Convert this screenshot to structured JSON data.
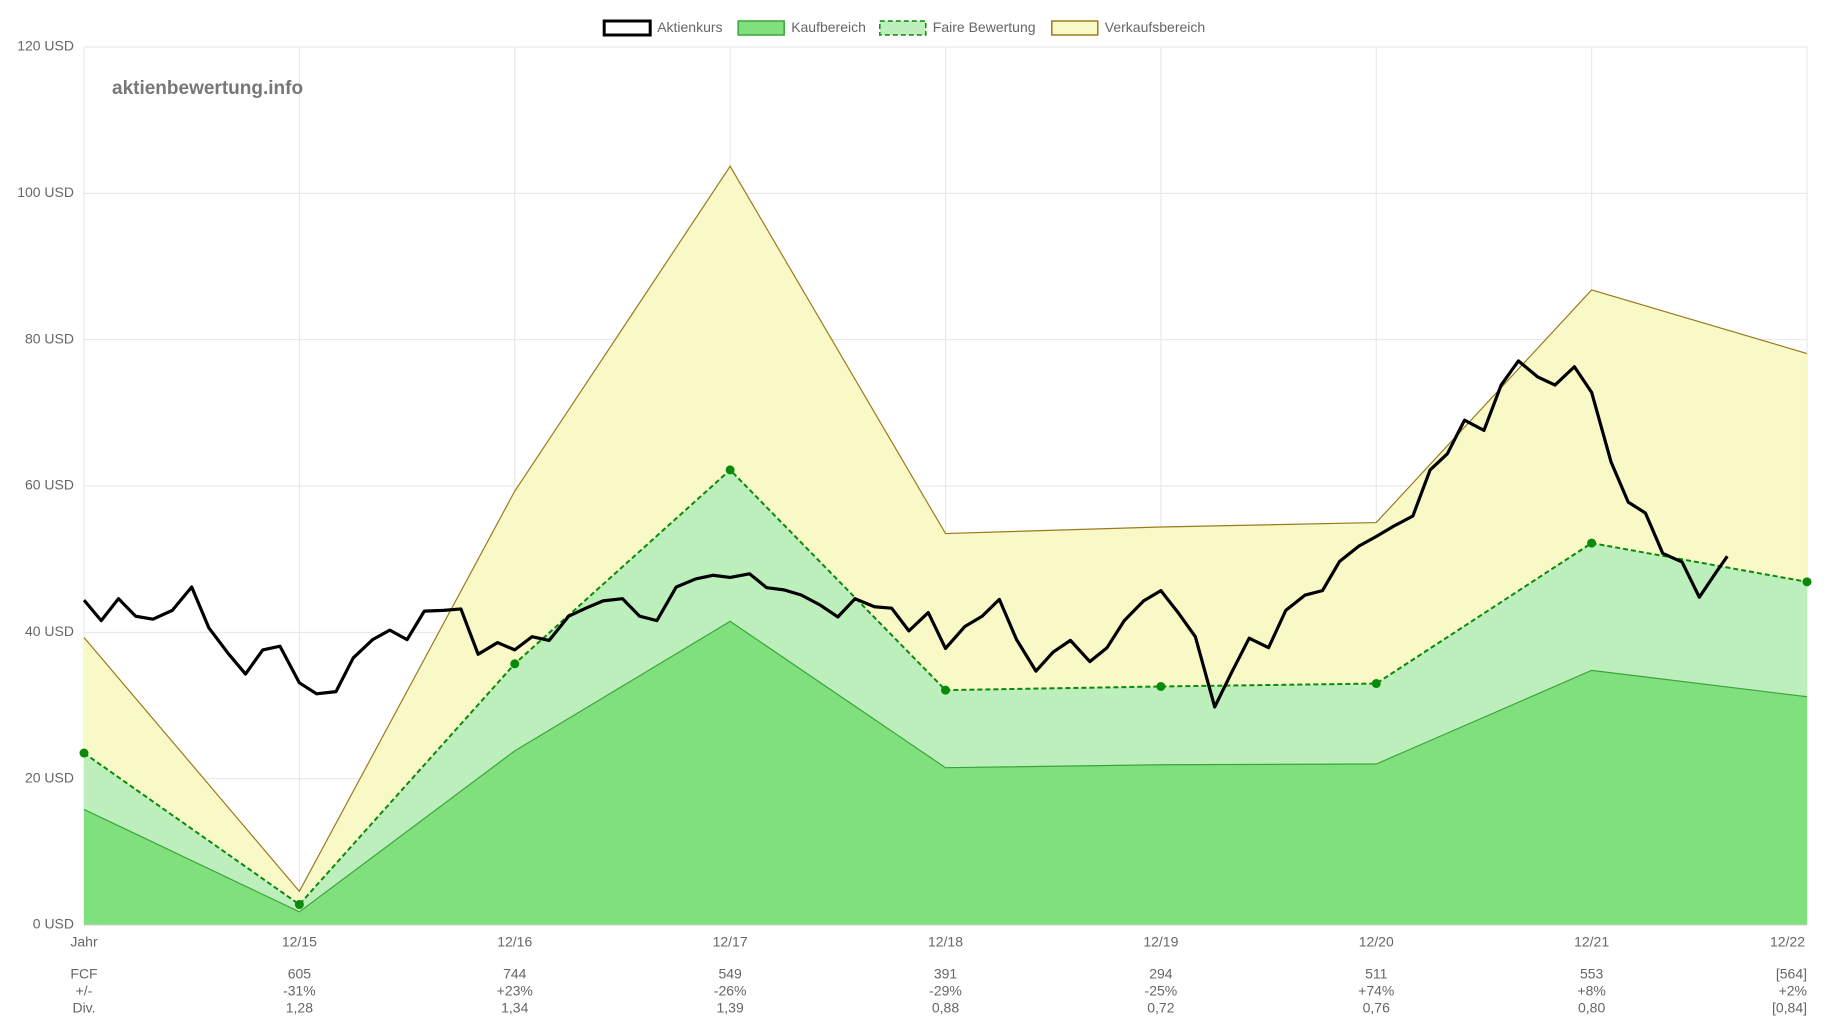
{
  "chart_data": {
    "type": "line",
    "watermark": "aktienbewertung.info",
    "x": [
      0,
      1,
      2,
      3,
      4,
      5,
      6,
      7,
      8
    ],
    "xlim": [
      0,
      8
    ],
    "xticks": [
      {
        "value": 0,
        "label": "Jahr"
      },
      {
        "value": 1,
        "label": "12/15"
      },
      {
        "value": 2,
        "label": "12/16"
      },
      {
        "value": 3,
        "label": "12/17"
      },
      {
        "value": 4,
        "label": "12/18"
      },
      {
        "value": 5,
        "label": "12/19"
      },
      {
        "value": 6,
        "label": "12/20"
      },
      {
        "value": 7,
        "label": "12/21"
      },
      {
        "value": 8,
        "label": "12/22"
      }
    ],
    "ylim": [
      0,
      120
    ],
    "yticks": [
      {
        "value": 0,
        "label": "0 USD"
      },
      {
        "value": 20,
        "label": "20 USD"
      },
      {
        "value": 40,
        "label": "40 USD"
      },
      {
        "value": 60,
        "label": "60 USD"
      },
      {
        "value": 80,
        "label": "80 USD"
      },
      {
        "value": 100,
        "label": "100 USD"
      },
      {
        "value": 120,
        "label": "120 USD"
      }
    ],
    "grid": true,
    "legend": "top",
    "series": [
      {
        "name": "Aktienkurs",
        "kind": "line",
        "color": "#000000",
        "fill_color": "#ffffff",
        "x": [
          0,
          0.08,
          0.16,
          0.24,
          0.32,
          0.41,
          0.5,
          0.58,
          0.67,
          0.75,
          0.83,
          0.91,
          1,
          1.08,
          1.17,
          1.25,
          1.34,
          1.42,
          1.5,
          1.58,
          1.67,
          1.75,
          1.83,
          1.92,
          2,
          2.08,
          2.16,
          2.25,
          2.33,
          2.41,
          2.5,
          2.58,
          2.66,
          2.75,
          2.84,
          2.92,
          3,
          3.09,
          3.17,
          3.25,
          3.33,
          3.42,
          3.5,
          3.58,
          3.67,
          3.75,
          3.83,
          3.92,
          4,
          4.09,
          4.17,
          4.25,
          4.33,
          4.42,
          4.5,
          4.58,
          4.67,
          4.75,
          4.83,
          4.92,
          5,
          5.08,
          5.16,
          5.25,
          5.33,
          5.41,
          5.5,
          5.58,
          5.67,
          5.75,
          5.83,
          5.92,
          6,
          6.08,
          6.17,
          6.25,
          6.33,
          6.41,
          6.5,
          6.58,
          6.66,
          6.75,
          6.83,
          6.92,
          7,
          7.09,
          7.17,
          7.25,
          7.33,
          7.42,
          7.5,
          7.58,
          7.63
        ],
        "values": [
          44.4,
          41.6,
          44.6,
          42.2,
          41.8,
          43,
          46.2,
          40.6,
          37.1,
          34.3,
          37.6,
          38.1,
          33.1,
          31.6,
          31.9,
          36.5,
          39,
          40.3,
          39,
          42.9,
          43,
          43.2,
          37,
          38.6,
          37.6,
          39.4,
          38.9,
          42.2,
          43.3,
          44.3,
          44.6,
          42.2,
          41.6,
          46.2,
          47.3,
          47.8,
          47.5,
          48,
          46.1,
          45.8,
          45.1,
          43.7,
          42.1,
          44.6,
          43.5,
          43.3,
          40.2,
          42.7,
          37.8,
          40.8,
          42.2,
          44.5,
          39,
          34.7,
          37.3,
          38.9,
          36,
          37.9,
          41.6,
          44.3,
          45.7,
          42.7,
          39.4,
          29.8,
          34.6,
          39.2,
          37.9,
          43,
          45.1,
          45.7,
          49.7,
          51.8,
          53.1,
          54.5,
          55.9,
          62.2,
          64.4,
          69,
          67.6,
          73.8,
          77.1,
          74.9,
          73.8,
          76.3,
          72.8,
          63.3,
          57.8,
          56.3,
          50.8,
          49.6,
          44.8,
          48.3,
          50.4
        ]
      },
      {
        "name": "Kaufbereich",
        "kind": "area",
        "color": "#3aa63a",
        "fill_color": "#80e07d",
        "values": [
          15.8,
          1.8,
          23.8,
          41.5,
          21.5,
          21.9,
          22.0,
          34.8,
          31.2
        ]
      },
      {
        "name": "Faire Bewertung",
        "kind": "area",
        "dashed": true,
        "points": true,
        "color": "#0a8a0a",
        "fill_color": "#bdefbd",
        "values": [
          23.5,
          2.8,
          35.7,
          62.2,
          32.1,
          32.6,
          33.0,
          52.2,
          46.9
        ]
      },
      {
        "name": "Verkaufsbereich",
        "kind": "area",
        "color": "#9b7a1e",
        "fill_color": "#f9f9c8",
        "values": [
          39.3,
          4.6,
          59.3,
          103.7,
          53.5,
          54.4,
          55.0,
          86.8,
          78.1
        ]
      }
    ],
    "footer_table": {
      "row_labels": [
        "FCF",
        "+/-",
        "Div."
      ],
      "rows": [
        [
          "605",
          "744",
          "549",
          "391",
          "294",
          "511",
          "553",
          "[564]"
        ],
        [
          "-31%",
          "+23%",
          "-26%",
          "-29%",
          "-25%",
          "+74%",
          "+8%",
          "+2%"
        ],
        [
          "1,28",
          "1,34",
          "1,39",
          "0,88",
          "0,72",
          "0,76",
          "0,80",
          "[0,84]"
        ]
      ]
    }
  }
}
